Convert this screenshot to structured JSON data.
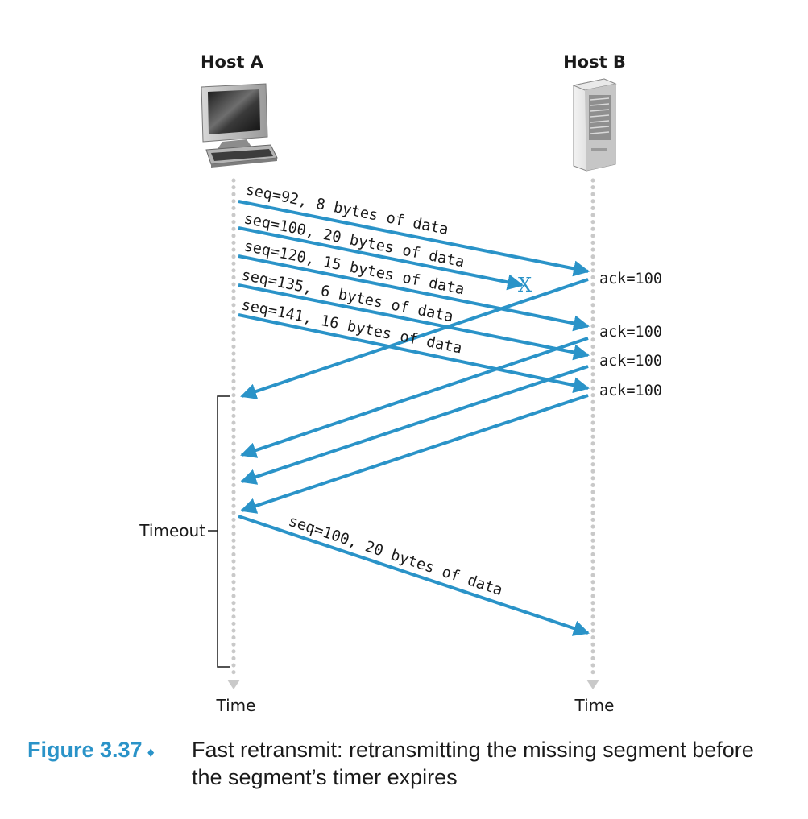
{
  "hosts": {
    "a": {
      "label": "Host A",
      "icon": "desktop-computer-icon"
    },
    "b": {
      "label": "Host B",
      "icon": "server-tower-icon"
    }
  },
  "time_labels": {
    "a": "Time",
    "b": "Time"
  },
  "timeout_label": "Timeout",
  "segments": [
    {
      "label": "seq=92, 8 bytes of data"
    },
    {
      "label": "seq=100, 20 bytes of data",
      "lost": true
    },
    {
      "label": "seq=120, 15 bytes of data"
    },
    {
      "label": "seq=135, 6 bytes of data"
    },
    {
      "label": "seq=141, 16 bytes of data"
    }
  ],
  "loss_marker": "X",
  "acks": [
    {
      "label": "ack=100"
    },
    {
      "label": "ack=100"
    },
    {
      "label": "ack=100"
    },
    {
      "label": "ack=100"
    }
  ],
  "retransmission": {
    "label": "seq=100, 20 bytes of data"
  },
  "caption": {
    "figure_number": "Figure 3.37",
    "separator": "♦",
    "text": "Fast retransmit: retransmitting the missing segment before the segment’s timer expires"
  },
  "colors": {
    "arrow": "#2a93c8",
    "timeline": "#c9c9c9",
    "figure_number": "#2a93c8"
  }
}
